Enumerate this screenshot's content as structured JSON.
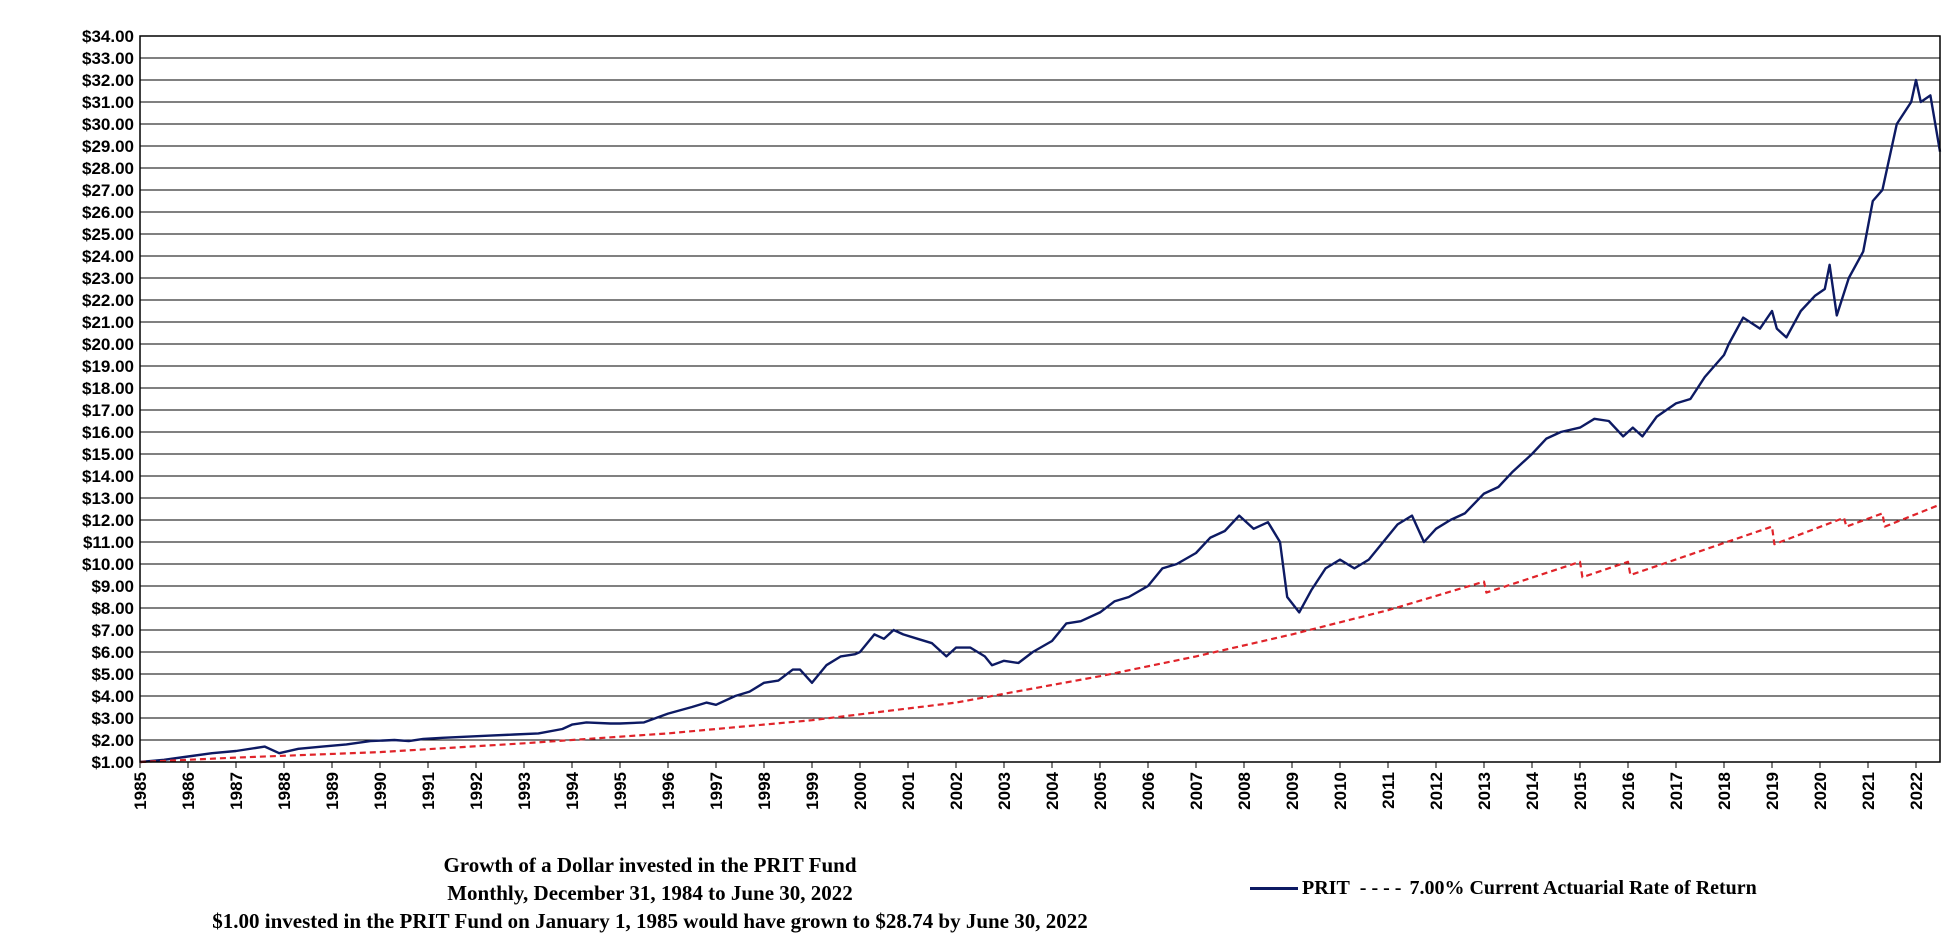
{
  "chart_data": {
    "type": "line",
    "title_lines": [
      "Growth of a Dollar invested in the PRIT Fund",
      "Monthly, December 31, 1984 to June 30, 2022",
      "$1.00 invested in the PRIT Fund on January 1, 1985 would have grown to $28.74 by June 30, 2022"
    ],
    "xlabel": "",
    "ylabel": "",
    "xlim": [
      1985.0,
      2022.5
    ],
    "ylim": [
      1,
      34
    ],
    "y_ticks": [
      "$1.00",
      "$2.00",
      "$3.00",
      "$4.00",
      "$5.00",
      "$6.00",
      "$7.00",
      "$8.00",
      "$9.00",
      "$10.00",
      "$11.00",
      "$12.00",
      "$13.00",
      "$14.00",
      "$15.00",
      "$16.00",
      "$17.00",
      "$18.00",
      "$19.00",
      "$20.00",
      "$21.00",
      "$22.00",
      "$23.00",
      "$24.00",
      "$25.00",
      "$26.00",
      "$27.00",
      "$28.00",
      "$29.00",
      "$30.00",
      "$31.00",
      "$32.00",
      "$33.00",
      "$34.00"
    ],
    "x_ticks": [
      "1985",
      "1986",
      "1987",
      "1988",
      "1989",
      "1990",
      "1991",
      "1992",
      "1993",
      "1994",
      "1995",
      "1996",
      "1997",
      "1998",
      "1999",
      "2000",
      "2001",
      "2002",
      "2003",
      "2004",
      "2005",
      "2006",
      "2007",
      "2008",
      "2009",
      "2010",
      "2011",
      "2012",
      "2013",
      "2014",
      "2015",
      "2016",
      "2017",
      "2018",
      "2019",
      "2020",
      "2021",
      "2022"
    ],
    "grid": "horizontal",
    "legend_position": "bottom-right",
    "series": [
      {
        "name": "PRIT",
        "color": "#0d1a63",
        "style": "solid",
        "x": [
          1985.0,
          1985.5,
          1986.0,
          1986.5,
          1987.0,
          1987.6,
          1987.9,
          1988.3,
          1988.8,
          1989.3,
          1989.8,
          1990.3,
          1990.6,
          1990.9,
          1991.3,
          1991.8,
          1992.3,
          1992.8,
          1993.3,
          1993.8,
          1994.0,
          1994.3,
          1994.8,
          1995.0,
          1995.5,
          1996.0,
          1996.5,
          1996.8,
          1997.0,
          1997.4,
          1997.7,
          1998.0,
          1998.3,
          1998.6,
          1998.75,
          1999.0,
          1999.3,
          1999.6,
          1999.9,
          2000.0,
          2000.3,
          2000.5,
          2000.7,
          2000.9,
          2001.2,
          2001.5,
          2001.8,
          2002.0,
          2002.3,
          2002.6,
          2002.75,
          2003.0,
          2003.3,
          2003.6,
          2004.0,
          2004.3,
          2004.6,
          2005.0,
          2005.3,
          2005.6,
          2006.0,
          2006.3,
          2006.6,
          2007.0,
          2007.3,
          2007.6,
          2007.9,
          2008.2,
          2008.5,
          2008.75,
          2008.9,
          2009.15,
          2009.4,
          2009.7,
          2010.0,
          2010.3,
          2010.6,
          2010.9,
          2011.2,
          2011.5,
          2011.75,
          2012.0,
          2012.3,
          2012.6,
          2013.0,
          2013.3,
          2013.6,
          2014.0,
          2014.3,
          2014.6,
          2015.0,
          2015.3,
          2015.6,
          2015.9,
          2016.1,
          2016.3,
          2016.6,
          2017.0,
          2017.3,
          2017.6,
          2018.0,
          2018.1,
          2018.4,
          2018.75,
          2019.0,
          2019.1,
          2019.3,
          2019.6,
          2019.9,
          2020.1,
          2020.2,
          2020.35,
          2020.6,
          2020.9,
          2021.1,
          2021.3,
          2021.6,
          2021.9,
          2022.0,
          2022.1,
          2022.3,
          2022.5
        ],
        "values": [
          1.0,
          1.1,
          1.25,
          1.4,
          1.5,
          1.7,
          1.4,
          1.6,
          1.7,
          1.8,
          1.95,
          2.0,
          1.95,
          2.05,
          2.1,
          2.15,
          2.2,
          2.25,
          2.3,
          2.5,
          2.7,
          2.8,
          2.75,
          2.75,
          2.8,
          3.2,
          3.5,
          3.7,
          3.6,
          4.0,
          4.2,
          4.6,
          4.7,
          5.2,
          5.2,
          4.6,
          5.4,
          5.8,
          5.9,
          6.0,
          6.8,
          6.6,
          7.0,
          6.8,
          6.6,
          6.4,
          5.8,
          6.2,
          6.2,
          5.8,
          5.4,
          5.6,
          5.5,
          6.0,
          6.5,
          7.3,
          7.4,
          7.8,
          8.3,
          8.5,
          9.0,
          9.8,
          10.0,
          10.5,
          11.2,
          11.5,
          12.2,
          11.6,
          11.9,
          11.0,
          8.5,
          7.8,
          8.8,
          9.8,
          10.2,
          9.8,
          10.2,
          11.0,
          11.8,
          12.2,
          11.0,
          11.6,
          12.0,
          12.3,
          13.2,
          13.5,
          14.2,
          15.0,
          15.7,
          16.0,
          16.2,
          16.6,
          16.5,
          15.8,
          16.2,
          15.8,
          16.7,
          17.3,
          17.5,
          18.5,
          19.5,
          20.0,
          21.2,
          20.7,
          21.5,
          20.7,
          20.3,
          21.5,
          22.2,
          22.5,
          23.6,
          21.3,
          23.0,
          24.2,
          26.5,
          27.0,
          30.0,
          31.0,
          32.0,
          31.0,
          31.3,
          28.74
        ]
      },
      {
        "name": "7.00% Current Actuarial Rate of Return",
        "color": "#e0242a",
        "style": "dashed",
        "x": [
          1985.0,
          1987.0,
          1990.0,
          1993.0,
          1996.0,
          1999.0,
          2002.0,
          2005.0,
          2007.0,
          2009.0,
          2011.0,
          2013.0,
          2013.05,
          2015.0,
          2015.05,
          2016.0,
          2016.05,
          2019.0,
          2019.05,
          2020.5,
          2020.55,
          2021.3,
          2021.35,
          2022.5
        ],
        "values": [
          1.0,
          1.2,
          1.45,
          1.85,
          2.3,
          2.9,
          3.7,
          4.9,
          5.8,
          6.8,
          7.9,
          9.2,
          8.7,
          10.1,
          9.4,
          10.1,
          9.5,
          11.7,
          10.9,
          12.1,
          11.7,
          12.3,
          11.7,
          12.7
        ]
      }
    ]
  }
}
